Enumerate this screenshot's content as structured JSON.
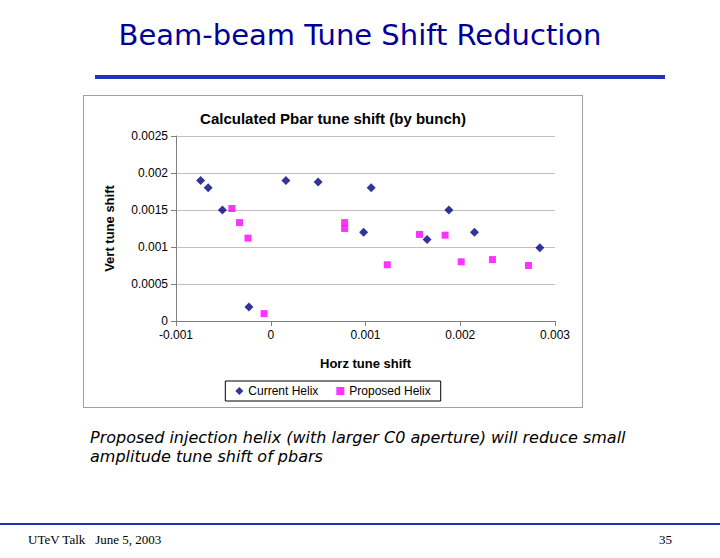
{
  "slide_title": "Beam-beam Tune Shift Reduction",
  "chart_data": {
    "type": "scatter",
    "title": "Calculated Pbar tune shift (by bunch)",
    "x_label": "Horz tune shift",
    "y_label": "Vert tune shift",
    "xlim": [
      -0.001,
      0.003
    ],
    "xticks": [
      -0.001,
      0,
      0.001,
      0.002,
      0.003
    ],
    "ylim": [
      0,
      0.0025
    ],
    "yticks": [
      0,
      0.0005,
      0.001,
      0.0015,
      0.002,
      0.0025
    ],
    "grid": "y",
    "legend": "bottom",
    "series": [
      {
        "name": "Current Helix",
        "color": "#000080",
        "marker": "diamond",
        "x": [
          -0.00074,
          -0.00066,
          -0.00051,
          -0.00023,
          0.00016,
          0.0005,
          0.00106,
          0.00098,
          0.00188,
          0.00165,
          0.00215,
          0.00284
        ],
        "values": [
          0.0019,
          0.0018,
          0.0015,
          0.00019,
          0.0019,
          0.00188,
          0.0018,
          0.0012,
          0.0015,
          0.0011,
          0.0012,
          0.00099
        ]
      },
      {
        "name": "Proposed Helix",
        "color": "#ff00ff",
        "marker": "square",
        "x": [
          -0.00041,
          -0.00033,
          -0.00024,
          -7e-05,
          0.00078,
          0.00078,
          0.00123,
          0.00157,
          0.00184,
          0.00201,
          0.00234,
          0.00272
        ],
        "values": [
          0.00152,
          0.00133,
          0.00112,
          0.0001,
          0.00133,
          0.00125,
          0.00076,
          0.00117,
          0.00116,
          0.0008,
          0.00083,
          0.00075
        ]
      }
    ]
  },
  "caption": "Proposed injection helix (with larger C0 aperture) will reduce small amplitude tune shift of pbars",
  "footer": {
    "left": "UTeV Talk",
    "date": "June 5, 2003",
    "page": 35
  }
}
